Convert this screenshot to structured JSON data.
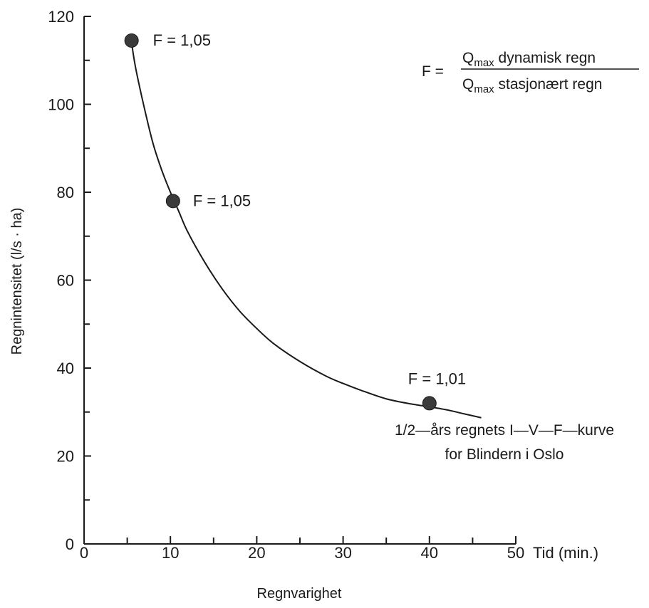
{
  "chart_data": {
    "type": "line",
    "title": "",
    "xlabel": "Regnvarighet",
    "x_unit_label": "Tid (min.)",
    "ylabel": "Regnintensitet (l/s · ha)",
    "xlim": [
      0,
      50
    ],
    "ylim": [
      0,
      120
    ],
    "x_ticks": [
      0,
      10,
      20,
      30,
      40,
      50
    ],
    "x_minor_step": 5,
    "y_ticks": [
      0,
      20,
      40,
      60,
      80,
      100,
      120
    ],
    "y_minor_step": 10,
    "grid": false,
    "series": [
      {
        "name": "",
        "x": [
          5.5,
          6,
          7,
          8,
          9,
          10,
          11,
          12,
          14,
          16,
          18,
          20,
          22,
          25,
          28,
          30,
          32,
          35,
          38,
          40,
          42,
          44,
          46
        ],
        "y": [
          114,
          108,
          99,
          91,
          85,
          80,
          75.5,
          71,
          64,
          58,
          53,
          49,
          45.5,
          41.5,
          38.2,
          36.5,
          35,
          33,
          31.8,
          31.2,
          30.5,
          29.6,
          28.7
        ]
      }
    ],
    "points": [
      {
        "x": 5.5,
        "y": 114.5,
        "label": "F = 1,05"
      },
      {
        "x": 10.3,
        "y": 78,
        "label": "F = 1,05"
      },
      {
        "x": 40,
        "y": 32,
        "label": "F = 1,01"
      }
    ],
    "caption_lines": [
      "1/2—års regnets I—V—F—kurve",
      "for Blindern i Oslo"
    ],
    "formula": {
      "lhs": "F =",
      "num_main": "Q",
      "num_sub": "max",
      "num_rest": " dynamisk regn",
      "den_main": "Q",
      "den_sub": "max",
      "den_rest": " stasjonært regn"
    },
    "colors": {
      "line": "#1a1a1a",
      "marker": "#3a3a3a"
    }
  }
}
